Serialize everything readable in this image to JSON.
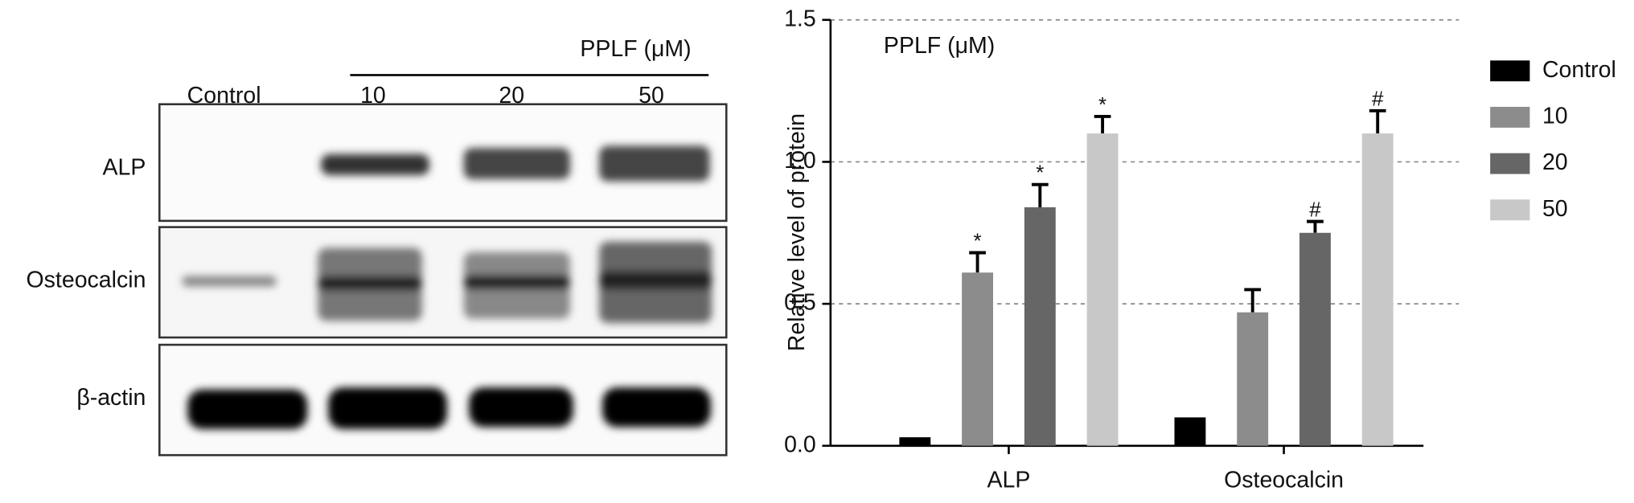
{
  "blot": {
    "header": "PPLF (μM)",
    "lanes": [
      "Control",
      "10",
      "20",
      "50"
    ],
    "rows": [
      "ALP",
      "Osteocalcin",
      "β-actin"
    ]
  },
  "chart_data": {
    "type": "bar",
    "y_label": "Relative level of protein",
    "annotation": "PPLF (μM)",
    "categories": [
      "ALP",
      "Osteocalcin"
    ],
    "series": [
      {
        "name": "Control",
        "color": "#000000",
        "values": [
          0.03,
          0.1
        ],
        "errors": [
          null,
          null
        ],
        "markers": [
          null,
          null
        ]
      },
      {
        "name": "10",
        "color": "#8c8c8c",
        "values": [
          0.61,
          0.47
        ],
        "errors": [
          0.07,
          0.08
        ],
        "markers": [
          "*",
          null
        ]
      },
      {
        "name": "20",
        "color": "#666666",
        "values": [
          0.84,
          0.75
        ],
        "errors": [
          0.08,
          0.04
        ],
        "markers": [
          "*",
          "#"
        ]
      },
      {
        "name": "50",
        "color": "#c8c8c8",
        "values": [
          1.1,
          1.1
        ],
        "errors": [
          0.06,
          0.08
        ],
        "markers": [
          "*",
          "#"
        ]
      }
    ],
    "ylim": [
      0,
      1.5
    ],
    "yticks": [
      {
        "value": 0,
        "label": "0.0"
      },
      {
        "value": 0.5,
        "label": "0.5"
      },
      {
        "value": 1,
        "label": "1.0"
      },
      {
        "value": 1.5,
        "label": "1.5"
      }
    ],
    "grid": true,
    "legend": "right"
  }
}
